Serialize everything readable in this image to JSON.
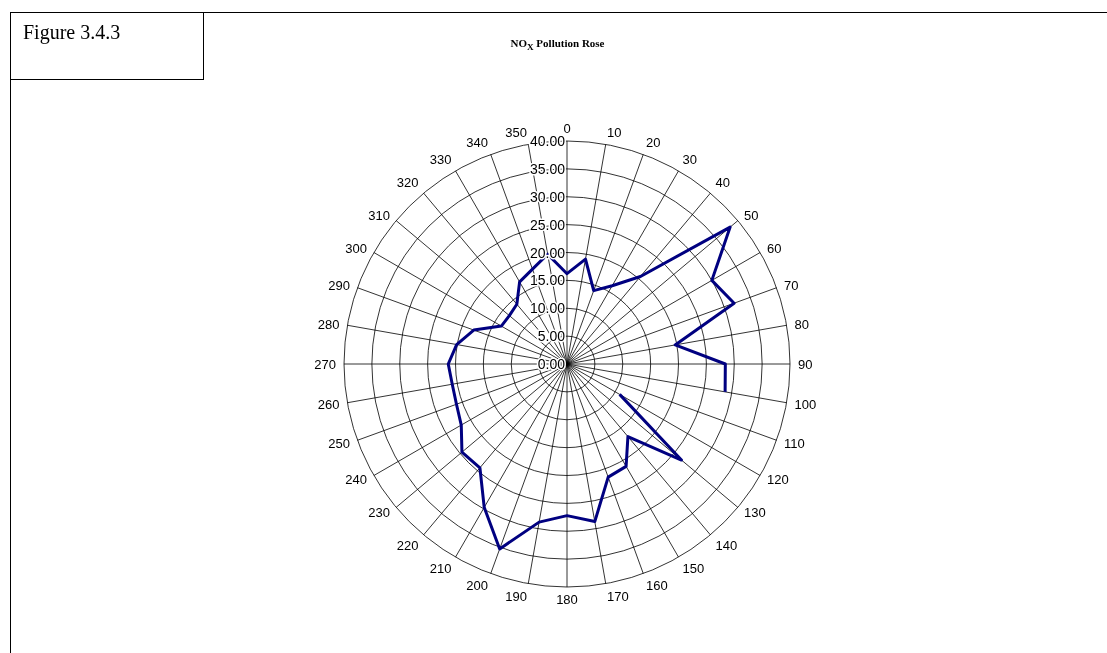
{
  "chart_data": {
    "type": "radar",
    "title": "NO$_{X}$ Pollution Rose",
    "annotations": [
      "Figure 3.4.3"
    ],
    "categories": [
      "0",
      "10",
      "20",
      "30",
      "40",
      "50",
      "60",
      "70",
      "80",
      "90",
      "100",
      "110",
      "120",
      "130",
      "140",
      "150",
      "160",
      "170",
      "180",
      "190",
      "200",
      "210",
      "220",
      "230",
      "240",
      "250",
      "260",
      "270",
      "280",
      "290",
      "300",
      "310",
      "320",
      "330",
      "340",
      "350"
    ],
    "series": [
      {
        "color": "#000080",
        "values": [
          16.2,
          19.1,
          14.0,
          16.2,
          20.5,
          38.2,
          30.0,
          31.9,
          19.7,
          28.4,
          28.8,
          null,
          10.9,
          26.8,
          17.0,
          21.2,
          21.6,
          28.7,
          27.2,
          28.8,
          35.3,
          29.7,
          24.3,
          24.6,
          21.9,
          21.1,
          20.9,
          21.3,
          20.1,
          17.8,
          13.6,
          13.5,
          14.0,
          17.0,
          18.1,
          20.0
        ]
      }
    ],
    "ylim": [
      0,
      40
    ],
    "yticks": [
      {
        "value": 0,
        "label": "0.00"
      },
      {
        "value": 5,
        "label": "5.00"
      },
      {
        "value": 10,
        "label": "10.00"
      },
      {
        "value": 15,
        "label": "15.00"
      },
      {
        "value": 20,
        "label": "20.00"
      },
      {
        "value": 25,
        "label": "25.00"
      },
      {
        "value": 30,
        "label": "30.00"
      },
      {
        "value": 35,
        "label": "35.00"
      },
      {
        "value": 40,
        "label": "40.00"
      }
    ],
    "grid": true,
    "marker": "none",
    "line_style": "solid"
  }
}
